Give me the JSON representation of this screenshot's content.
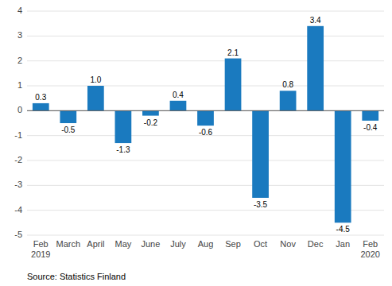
{
  "chart_data": {
    "type": "bar",
    "categories": [
      "Feb\n2019",
      "March",
      "April",
      "May",
      "June",
      "July",
      "Aug",
      "Sep",
      "Oct",
      "Nov",
      "Dec",
      "Jan",
      "Feb\n2020"
    ],
    "values": [
      0.3,
      -0.5,
      1.0,
      -1.3,
      -0.2,
      0.4,
      -0.6,
      2.1,
      -3.5,
      0.8,
      3.4,
      -4.5,
      -0.4
    ],
    "value_labels": [
      "0.3",
      "-0.5",
      "1.0",
      "-1.3",
      "-0.2",
      "0.4",
      "-0.6",
      "2.1",
      "-3.5",
      "0.8",
      "3.4",
      "-4.5",
      "-0.4"
    ],
    "color": "#1a7abf",
    "ylim": [
      -5,
      4
    ],
    "yticks": [
      -5,
      -4,
      -3,
      -2,
      -1,
      0,
      1,
      2,
      3,
      4
    ],
    "grid": true,
    "data_labels": true,
    "annotation": "Source: Statistics Finland"
  }
}
